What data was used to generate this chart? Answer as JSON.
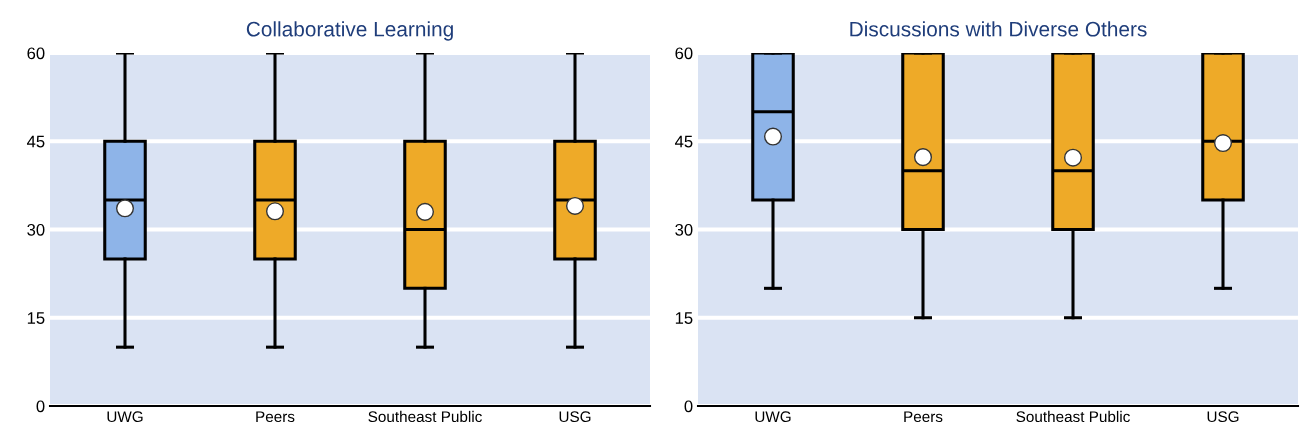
{
  "chart_data": [
    {
      "type": "box",
      "title": "Collaborative Learning",
      "categories": [
        "UWG",
        "Peers",
        "Southeast Public",
        "USG"
      ],
      "colors": [
        "#8eb4e8",
        "#eeaa28",
        "#eeaa28",
        "#eeaa28"
      ],
      "ylim": [
        0,
        60
      ],
      "yticks": [
        0,
        15,
        30,
        45,
        60
      ],
      "grid": "y",
      "boxes": [
        {
          "low": 10,
          "q1": 25,
          "median": 35,
          "q3": 45,
          "high": 60,
          "mean": 33.6
        },
        {
          "low": 10,
          "q1": 25,
          "median": 35,
          "q3": 45,
          "high": 60,
          "mean": 33.1
        },
        {
          "low": 10,
          "q1": 20,
          "median": 30,
          "q3": 45,
          "high": 60,
          "mean": 33.0
        },
        {
          "low": 10,
          "q1": 25,
          "median": 35,
          "q3": 45,
          "high": 60,
          "mean": 34.0
        }
      ]
    },
    {
      "type": "box",
      "title": "Discussions with Diverse Others",
      "categories": [
        "UWG",
        "Peers",
        "Southeast Public",
        "USG"
      ],
      "colors": [
        "#8eb4e8",
        "#eeaa28",
        "#eeaa28",
        "#eeaa28"
      ],
      "ylim": [
        0,
        60
      ],
      "yticks": [
        0,
        15,
        30,
        45,
        60
      ],
      "grid": "y",
      "boxes": [
        {
          "low": 20,
          "q1": 35,
          "median": 50,
          "q3": 60,
          "high": 60,
          "mean": 45.8
        },
        {
          "low": 15,
          "q1": 30,
          "median": 40,
          "q3": 60,
          "high": 60,
          "mean": 42.3
        },
        {
          "low": 15,
          "q1": 30,
          "median": 40,
          "q3": 60,
          "high": 60,
          "mean": 42.2
        },
        {
          "low": 20,
          "q1": 35,
          "median": 45,
          "q3": 60,
          "high": 60,
          "mean": 44.7
        }
      ]
    }
  ]
}
